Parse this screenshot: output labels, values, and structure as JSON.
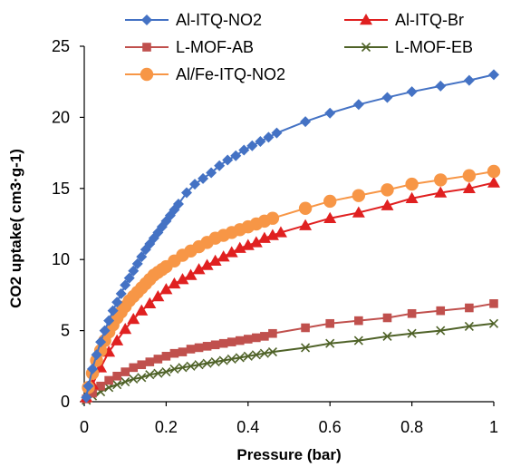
{
  "chart_data": {
    "type": "line",
    "title": "",
    "xlabel": "Pressure (bar)",
    "ylabel": "CO2 uptake( cm3·g-1)",
    "xlim": [
      0,
      1
    ],
    "ylim": [
      0,
      25
    ],
    "xticks": [
      0,
      0.2,
      0.4,
      0.6,
      0.8,
      1
    ],
    "xtick_labels": [
      "0",
      "0.2",
      "0.4",
      "0.6",
      "0.8",
      "1"
    ],
    "yticks": [
      0,
      5,
      10,
      15,
      20,
      25
    ],
    "ytick_labels": [
      "0",
      "5",
      "10",
      "15",
      "20",
      "25"
    ],
    "grid": false,
    "legend_position": "top",
    "series": [
      {
        "name": "Al-ITQ-NO2",
        "color": "#4472C4",
        "marker": "diamond",
        "x": [
          0.005,
          0.01,
          0.02,
          0.03,
          0.04,
          0.05,
          0.06,
          0.07,
          0.08,
          0.09,
          0.1,
          0.11,
          0.12,
          0.13,
          0.14,
          0.15,
          0.16,
          0.17,
          0.18,
          0.19,
          0.2,
          0.21,
          0.22,
          0.23,
          0.25,
          0.27,
          0.29,
          0.31,
          0.33,
          0.35,
          0.37,
          0.39,
          0.41,
          0.43,
          0.45,
          0.47,
          0.54,
          0.6,
          0.67,
          0.74,
          0.8,
          0.87,
          0.94,
          1.0
        ],
        "y": [
          0.3,
          1.1,
          2.3,
          3.3,
          4.2,
          5.0,
          5.7,
          6.4,
          7.0,
          7.6,
          8.2,
          8.7,
          9.2,
          9.7,
          10.2,
          10.7,
          11.1,
          11.5,
          11.9,
          12.3,
          12.7,
          13.1,
          13.5,
          13.9,
          14.7,
          15.3,
          15.7,
          16.1,
          16.6,
          17.0,
          17.3,
          17.7,
          18.0,
          18.3,
          18.6,
          18.9,
          19.7,
          20.3,
          20.9,
          21.4,
          21.8,
          22.2,
          22.6,
          23.0
        ]
      },
      {
        "name": "Al-ITQ-Br",
        "color": "#E02020",
        "marker": "triangle",
        "x": [
          0.005,
          0.02,
          0.04,
          0.06,
          0.08,
          0.1,
          0.12,
          0.14,
          0.16,
          0.18,
          0.2,
          0.22,
          0.24,
          0.26,
          0.28,
          0.3,
          0.32,
          0.34,
          0.36,
          0.38,
          0.4,
          0.42,
          0.44,
          0.46,
          0.48,
          0.54,
          0.6,
          0.67,
          0.74,
          0.8,
          0.87,
          0.94,
          1.0
        ],
        "y": [
          0.3,
          1.2,
          2.4,
          3.5,
          4.3,
          5.1,
          5.8,
          6.4,
          6.9,
          7.4,
          7.9,
          8.3,
          8.6,
          8.9,
          9.3,
          9.6,
          9.9,
          10.2,
          10.5,
          10.8,
          11.0,
          11.2,
          11.5,
          11.7,
          11.9,
          12.4,
          12.9,
          13.3,
          13.8,
          14.3,
          14.7,
          15.0,
          15.4
        ]
      },
      {
        "name": "L-MOF-AB",
        "color": "#C0504D",
        "marker": "square",
        "x": [
          0.005,
          0.02,
          0.04,
          0.06,
          0.08,
          0.1,
          0.12,
          0.14,
          0.16,
          0.18,
          0.2,
          0.22,
          0.24,
          0.26,
          0.28,
          0.3,
          0.32,
          0.34,
          0.36,
          0.38,
          0.4,
          0.42,
          0.44,
          0.46,
          0.54,
          0.6,
          0.67,
          0.74,
          0.8,
          0.87,
          0.94,
          1.0
        ],
        "y": [
          0.2,
          0.6,
          1.1,
          1.5,
          1.8,
          2.1,
          2.4,
          2.6,
          2.8,
          3.0,
          3.2,
          3.4,
          3.5,
          3.7,
          3.8,
          3.9,
          4.0,
          4.1,
          4.2,
          4.3,
          4.4,
          4.5,
          4.6,
          4.8,
          5.2,
          5.5,
          5.7,
          5.9,
          6.2,
          6.4,
          6.6,
          6.9
        ]
      },
      {
        "name": "L-MOF-EB",
        "color": "#4F6228",
        "marker": "x",
        "x": [
          0.005,
          0.02,
          0.04,
          0.06,
          0.08,
          0.1,
          0.12,
          0.14,
          0.16,
          0.18,
          0.2,
          0.22,
          0.24,
          0.26,
          0.28,
          0.3,
          0.32,
          0.34,
          0.36,
          0.38,
          0.4,
          0.42,
          0.44,
          0.46,
          0.54,
          0.6,
          0.67,
          0.74,
          0.8,
          0.87,
          0.94,
          1.0
        ],
        "y": [
          0.1,
          0.4,
          0.7,
          1.0,
          1.2,
          1.4,
          1.6,
          1.7,
          1.9,
          2.0,
          2.1,
          2.3,
          2.4,
          2.5,
          2.6,
          2.7,
          2.8,
          2.9,
          3.0,
          3.1,
          3.2,
          3.3,
          3.4,
          3.5,
          3.8,
          4.1,
          4.3,
          4.6,
          4.8,
          5.0,
          5.3,
          5.5
        ]
      },
      {
        "name": "Al/Fe-ITQ-NO2",
        "color": "#F79646",
        "marker": "circle",
        "x": [
          0.01,
          0.02,
          0.03,
          0.04,
          0.05,
          0.06,
          0.07,
          0.08,
          0.09,
          0.1,
          0.11,
          0.12,
          0.13,
          0.14,
          0.15,
          0.16,
          0.17,
          0.18,
          0.19,
          0.2,
          0.22,
          0.24,
          0.26,
          0.28,
          0.3,
          0.32,
          0.34,
          0.36,
          0.38,
          0.4,
          0.42,
          0.44,
          0.46,
          0.54,
          0.6,
          0.67,
          0.74,
          0.8,
          0.87,
          0.94,
          1.0
        ],
        "y": [
          1.0,
          2.0,
          2.9,
          3.6,
          4.3,
          4.9,
          5.4,
          5.9,
          6.3,
          6.7,
          7.1,
          7.4,
          7.7,
          8.0,
          8.3,
          8.6,
          8.9,
          9.1,
          9.3,
          9.5,
          9.9,
          10.3,
          10.6,
          10.9,
          11.2,
          11.5,
          11.7,
          11.9,
          12.1,
          12.3,
          12.5,
          12.7,
          12.9,
          13.6,
          14.1,
          14.5,
          14.9,
          15.3,
          15.6,
          15.9,
          16.2
        ]
      }
    ]
  }
}
